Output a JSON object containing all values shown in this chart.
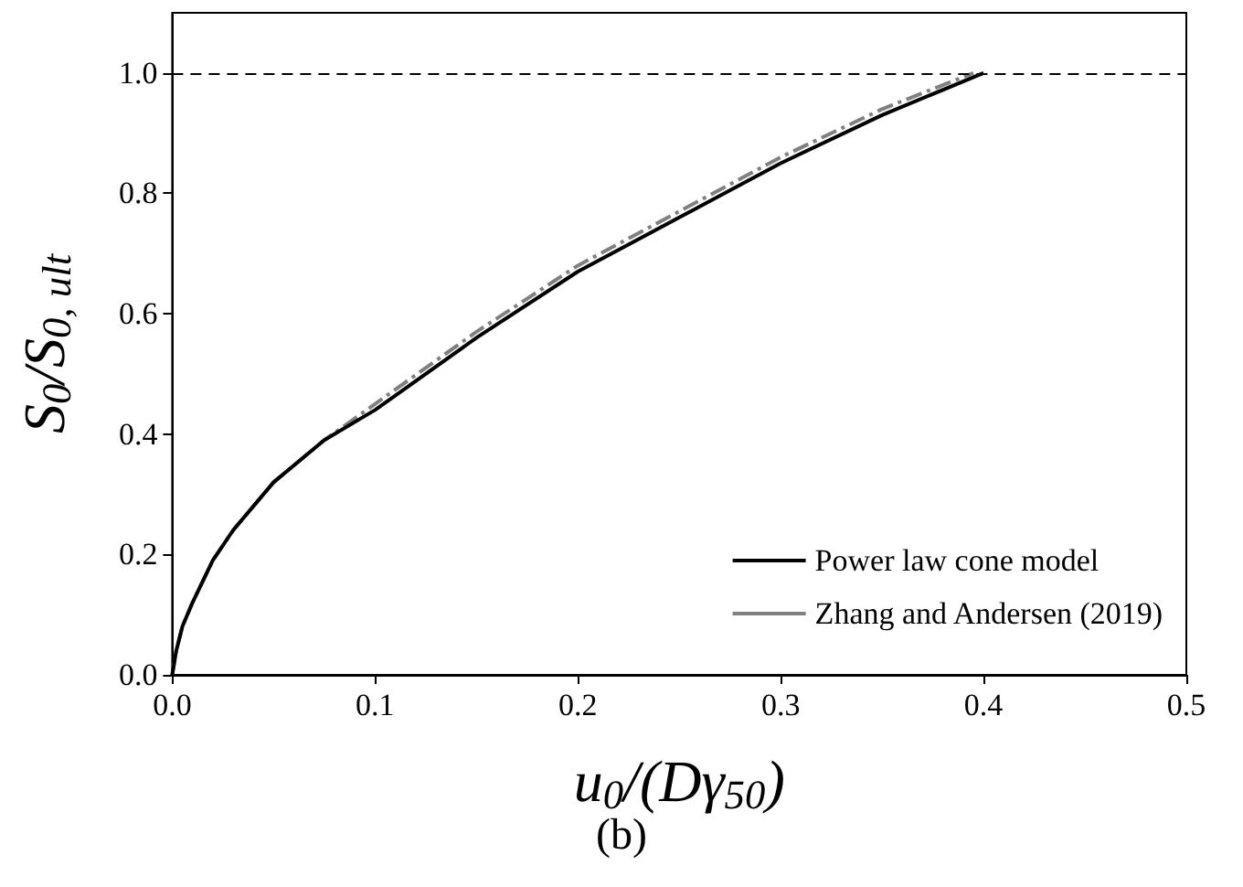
{
  "chart_data": {
    "type": "line",
    "xlabel": "u$_{0}$/(Dγ$_{50}$)",
    "ylabel": "S$_{0}$/S$_{0, ult}$",
    "xlim": [
      0,
      0.5
    ],
    "xticks": [
      {
        "value": 0,
        "label": "0.0"
      },
      {
        "value": 0.1,
        "label": "0.1"
      },
      {
        "value": 0.2,
        "label": "0.2"
      },
      {
        "value": 0.3,
        "label": "0.3"
      },
      {
        "value": 0.4,
        "label": "0.4"
      },
      {
        "value": 0.5,
        "label": "0.5"
      }
    ],
    "ylim": [
      0,
      1.1
    ],
    "yticks": [
      {
        "value": 0,
        "label": "0.0"
      },
      {
        "value": 0.2,
        "label": "0.2"
      },
      {
        "value": 0.4,
        "label": "0.4"
      },
      {
        "value": 0.6,
        "label": "0.6"
      },
      {
        "value": 0.8,
        "label": "0.8"
      },
      {
        "value": 1,
        "label": "1.0"
      }
    ],
    "series": [
      {
        "name": "Power law cone model",
        "color": "#000000",
        "line_style": "solid",
        "x": [
          0,
          0.002,
          0.005,
          0.01,
          0.02,
          0.03,
          0.05,
          0.075,
          0.1,
          0.15,
          0.2,
          0.25,
          0.3,
          0.35,
          0.4
        ],
        "values": [
          0,
          0.04,
          0.08,
          0.12,
          0.19,
          0.24,
          0.32,
          0.39,
          0.44,
          0.56,
          0.67,
          0.76,
          0.85,
          0.93,
          1.0
        ]
      },
      {
        "name": "Zhang and Andersen (2019)",
        "color": "#808080",
        "line_style": "dashdot",
        "x": [
          0,
          0.002,
          0.005,
          0.01,
          0.02,
          0.03,
          0.05,
          0.075,
          0.1,
          0.15,
          0.2,
          0.25,
          0.3,
          0.35,
          0.395
        ],
        "values": [
          0,
          0.04,
          0.08,
          0.12,
          0.19,
          0.24,
          0.32,
          0.39,
          0.45,
          0.57,
          0.68,
          0.77,
          0.86,
          0.94,
          1.0
        ]
      }
    ],
    "ref_lines": [
      {
        "axis": "y",
        "value": 1,
        "color": "#000000",
        "line_style": "dashed"
      }
    ],
    "legend": "bottom right",
    "grid": false,
    "marker": "none",
    "annotations": [
      "(b)"
    ]
  }
}
